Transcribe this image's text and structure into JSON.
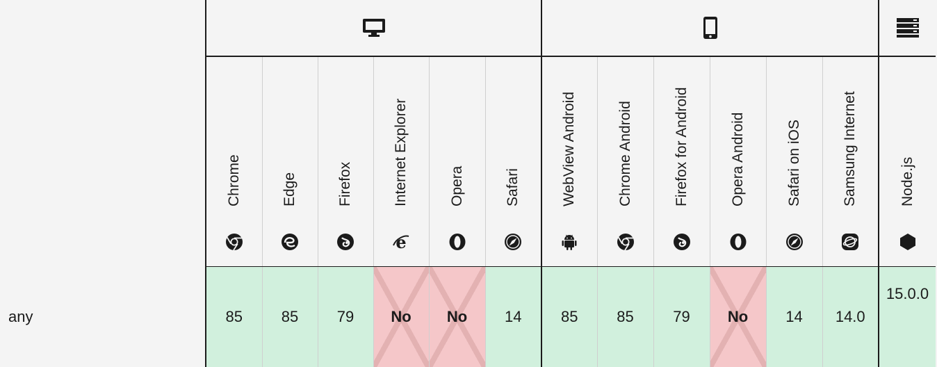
{
  "platforms": {
    "desktop_icon": "desktop-icon",
    "mobile_icon": "mobile-icon",
    "server_icon": "server-icon"
  },
  "browsers": [
    {
      "name": "Chrome",
      "icon": "chrome-icon"
    },
    {
      "name": "Edge",
      "icon": "edge-icon"
    },
    {
      "name": "Firefox",
      "icon": "firefox-icon"
    },
    {
      "name": "Internet Explorer",
      "icon": "internet-explorer-icon"
    },
    {
      "name": "Opera",
      "icon": "opera-icon"
    },
    {
      "name": "Safari",
      "icon": "safari-icon"
    },
    {
      "name": "WebView Android",
      "icon": "android-icon"
    },
    {
      "name": "Chrome Android",
      "icon": "chrome-icon"
    },
    {
      "name": "Firefox for Android",
      "icon": "firefox-icon"
    },
    {
      "name": "Opera Android",
      "icon": "opera-icon"
    },
    {
      "name": "Safari on iOS",
      "icon": "safari-icon"
    },
    {
      "name": "Samsung Internet",
      "icon": "samsung-internet-icon"
    },
    {
      "name": "Node.js",
      "icon": "nodejs-icon"
    }
  ],
  "rows": [
    {
      "label": "any",
      "values": [
        "85",
        "85",
        "79",
        "No",
        "No",
        "14",
        "85",
        "85",
        "79",
        "No",
        "14",
        "14.0",
        "15.0.0"
      ]
    }
  ],
  "colors": {
    "supported": "#d1f0dd",
    "unsupported": "#f5c7c9",
    "header_bg": "#f4f4f4",
    "border": "#1b1b1b"
  }
}
